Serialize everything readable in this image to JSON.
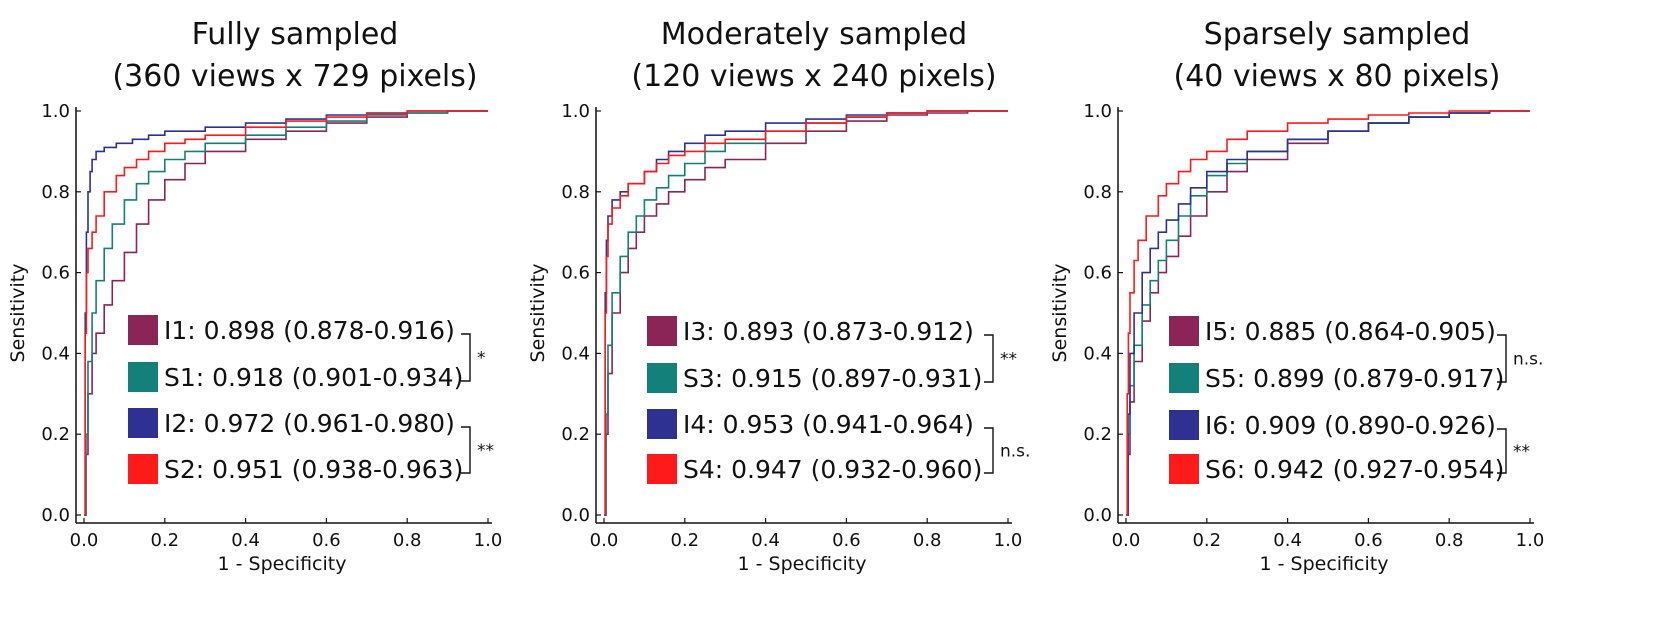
{
  "colors": {
    "I_odd": "#8b2457",
    "S_odd": "#138079",
    "I_even": "#2e3192",
    "S_even": "#ff1a1a"
  },
  "panels": [
    {
      "title_line1": "Fully sampled",
      "title_line2": "(360 views x 729 pixels)",
      "chart_data": {
        "type": "line",
        "subtype": "roc",
        "xlabel": "1 - Specificity",
        "ylabel": "Sensitivity",
        "xlim": [
          0,
          1
        ],
        "ylim": [
          0,
          1
        ],
        "xticks": [
          "0.0",
          "0.2",
          "0.4",
          "0.6",
          "0.8",
          "1.0"
        ],
        "yticks": [
          "0.0",
          "0.2",
          "0.4",
          "0.6",
          "0.8",
          "1.0"
        ],
        "series": [
          {
            "name": "I1",
            "legend": "I1: 0.898 (0.878-0.916)",
            "color": "#8b2457",
            "x": [
              0,
              0.005,
              0.01,
              0.02,
              0.03,
              0.05,
              0.07,
              0.1,
              0.13,
              0.16,
              0.2,
              0.25,
              0.3,
              0.4,
              0.5,
              0.6,
              0.7,
              0.8,
              0.9,
              1.0
            ],
            "y": [
              0,
              0.15,
              0.3,
              0.4,
              0.45,
              0.52,
              0.58,
              0.65,
              0.72,
              0.78,
              0.83,
              0.87,
              0.9,
              0.93,
              0.95,
              0.97,
              0.985,
              0.995,
              1.0,
              1.0
            ]
          },
          {
            "name": "S1",
            "legend": "S1: 0.918 (0.901-0.934)",
            "color": "#138079",
            "x": [
              0,
              0.005,
              0.01,
              0.02,
              0.03,
              0.05,
              0.07,
              0.1,
              0.13,
              0.16,
              0.2,
              0.25,
              0.3,
              0.4,
              0.5,
              0.6,
              0.7,
              0.8,
              0.9,
              1.0
            ],
            "y": [
              0,
              0.2,
              0.38,
              0.5,
              0.58,
              0.66,
              0.72,
              0.78,
              0.82,
              0.85,
              0.88,
              0.9,
              0.92,
              0.94,
              0.96,
              0.975,
              0.99,
              0.995,
              1.0,
              1.0
            ]
          },
          {
            "name": "I2",
            "legend": "I2: 0.972 (0.961-0.980)",
            "color": "#2e3192",
            "x": [
              0,
              0.003,
              0.006,
              0.01,
              0.015,
              0.02,
              0.03,
              0.05,
              0.08,
              0.12,
              0.16,
              0.2,
              0.3,
              0.4,
              0.5,
              0.6,
              0.7,
              0.8,
              0.9,
              1.0
            ],
            "y": [
              0,
              0.5,
              0.7,
              0.8,
              0.85,
              0.88,
              0.9,
              0.91,
              0.92,
              0.93,
              0.94,
              0.95,
              0.96,
              0.97,
              0.98,
              0.99,
              0.995,
              1.0,
              1.0,
              1.0
            ]
          },
          {
            "name": "S2",
            "legend": "S2: 0.951 (0.938-0.963)",
            "color": "#ff1a1a",
            "x": [
              0,
              0.003,
              0.006,
              0.01,
              0.02,
              0.03,
              0.05,
              0.08,
              0.1,
              0.13,
              0.16,
              0.2,
              0.25,
              0.3,
              0.4,
              0.5,
              0.6,
              0.7,
              0.8,
              0.9,
              1.0
            ],
            "y": [
              0,
              0.45,
              0.6,
              0.66,
              0.7,
              0.74,
              0.8,
              0.84,
              0.86,
              0.88,
              0.9,
              0.92,
              0.93,
              0.94,
              0.96,
              0.975,
              0.985,
              0.993,
              1.0,
              1.0,
              1.0
            ]
          }
        ]
      },
      "legend": [
        {
          "label": "I1: 0.898 (0.878-0.916)",
          "color": "#8b2457"
        },
        {
          "label": "S1: 0.918 (0.901-0.934)",
          "color": "#138079"
        },
        {
          "label": "I2: 0.972 (0.961-0.980)",
          "color": "#2e3192"
        },
        {
          "label": "S2: 0.951 (0.938-0.963)",
          "color": "#ff1a1a"
        }
      ],
      "significance": [
        {
          "pair": [
            "I1",
            "S1"
          ],
          "label": "*"
        },
        {
          "pair": [
            "I2",
            "S2"
          ],
          "label": "**"
        }
      ]
    },
    {
      "title_line1": "Moderately sampled",
      "title_line2": "(120 views x 240 pixels)",
      "chart_data": {
        "type": "line",
        "subtype": "roc",
        "xlabel": "1 - Specificity",
        "ylabel": "Sensitivity",
        "xlim": [
          0,
          1
        ],
        "ylim": [
          0,
          1
        ],
        "xticks": [
          "0.0",
          "0.2",
          "0.4",
          "0.6",
          "0.8",
          "1.0"
        ],
        "yticks": [
          "0.0",
          "0.2",
          "0.4",
          "0.6",
          "0.8",
          "1.0"
        ],
        "series": [
          {
            "name": "I3",
            "legend": "I3: 0.893 (0.873-0.912)",
            "color": "#8b2457",
            "x": [
              0,
              0.005,
              0.01,
              0.02,
              0.04,
              0.06,
              0.08,
              0.1,
              0.13,
              0.16,
              0.2,
              0.25,
              0.3,
              0.4,
              0.5,
              0.6,
              0.7,
              0.8,
              0.9,
              1.0
            ],
            "y": [
              0,
              0.2,
              0.35,
              0.5,
              0.6,
              0.66,
              0.7,
              0.74,
              0.77,
              0.8,
              0.83,
              0.86,
              0.88,
              0.92,
              0.95,
              0.975,
              0.99,
              0.995,
              1.0,
              1.0
            ]
          },
          {
            "name": "S3",
            "legend": "S3: 0.915 (0.897-0.931)",
            "color": "#138079",
            "x": [
              0,
              0.005,
              0.01,
              0.02,
              0.04,
              0.06,
              0.08,
              0.1,
              0.13,
              0.16,
              0.2,
              0.25,
              0.3,
              0.4,
              0.5,
              0.6,
              0.7,
              0.8,
              0.9,
              1.0
            ],
            "y": [
              0,
              0.25,
              0.42,
              0.55,
              0.64,
              0.7,
              0.74,
              0.78,
              0.81,
              0.84,
              0.87,
              0.9,
              0.92,
              0.95,
              0.97,
              0.985,
              0.995,
              1.0,
              1.0,
              1.0
            ]
          },
          {
            "name": "I4",
            "legend": "I4: 0.953 (0.941-0.964)",
            "color": "#2e3192",
            "x": [
              0,
              0.003,
              0.006,
              0.01,
              0.02,
              0.04,
              0.06,
              0.1,
              0.13,
              0.16,
              0.2,
              0.25,
              0.3,
              0.4,
              0.5,
              0.6,
              0.7,
              0.8,
              0.9,
              1.0
            ],
            "y": [
              0,
              0.55,
              0.68,
              0.74,
              0.78,
              0.8,
              0.82,
              0.85,
              0.88,
              0.9,
              0.92,
              0.94,
              0.95,
              0.97,
              0.98,
              0.99,
              0.995,
              1.0,
              1.0,
              1.0
            ]
          },
          {
            "name": "S4",
            "legend": "S4: 0.947 (0.932-0.960)",
            "color": "#ff1a1a",
            "x": [
              0,
              0.003,
              0.006,
              0.01,
              0.02,
              0.04,
              0.06,
              0.1,
              0.13,
              0.16,
              0.2,
              0.25,
              0.3,
              0.4,
              0.5,
              0.6,
              0.7,
              0.8,
              0.9,
              1.0
            ],
            "y": [
              0,
              0.5,
              0.64,
              0.72,
              0.76,
              0.79,
              0.82,
              0.85,
              0.87,
              0.89,
              0.9,
              0.92,
              0.93,
              0.95,
              0.97,
              0.985,
              0.995,
              1.0,
              1.0,
              1.0
            ]
          }
        ]
      },
      "legend": [
        {
          "label": "I3: 0.893 (0.873-0.912)",
          "color": "#8b2457"
        },
        {
          "label": "S3: 0.915 (0.897-0.931)",
          "color": "#138079"
        },
        {
          "label": "I4: 0.953 (0.941-0.964)",
          "color": "#2e3192"
        },
        {
          "label": "S4: 0.947 (0.932-0.960)",
          "color": "#ff1a1a"
        }
      ],
      "significance": [
        {
          "pair": [
            "I3",
            "S3"
          ],
          "label": "**"
        },
        {
          "pair": [
            "I4",
            "S4"
          ],
          "label": "n.s."
        }
      ]
    },
    {
      "title_line1": "Sparsely sampled",
      "title_line2": "(40 views x 80 pixels)",
      "chart_data": {
        "type": "line",
        "subtype": "roc",
        "xlabel": "1 - Specificity",
        "ylabel": "Sensitivity",
        "xlim": [
          0,
          1
        ],
        "ylim": [
          0,
          1
        ],
        "xticks": [
          "0.0",
          "0.2",
          "0.4",
          "0.6",
          "0.8",
          "1.0"
        ],
        "yticks": [
          "0.0",
          "0.2",
          "0.4",
          "0.6",
          "0.8",
          "1.0"
        ],
        "series": [
          {
            "name": "I5",
            "legend": "I5: 0.885 (0.864-0.905)",
            "color": "#8b2457",
            "x": [
              0,
              0.005,
              0.01,
              0.02,
              0.04,
              0.06,
              0.08,
              0.1,
              0.13,
              0.16,
              0.2,
              0.25,
              0.3,
              0.4,
              0.5,
              0.6,
              0.7,
              0.8,
              0.9,
              1.0
            ],
            "y": [
              0,
              0.15,
              0.28,
              0.38,
              0.48,
              0.55,
              0.6,
              0.64,
              0.69,
              0.74,
              0.8,
              0.85,
              0.88,
              0.92,
              0.95,
              0.97,
              0.985,
              0.995,
              1.0,
              1.0
            ]
          },
          {
            "name": "S5",
            "legend": "S5: 0.899 (0.879-0.917)",
            "color": "#138079",
            "x": [
              0,
              0.005,
              0.01,
              0.02,
              0.04,
              0.06,
              0.08,
              0.1,
              0.13,
              0.16,
              0.2,
              0.25,
              0.3,
              0.4,
              0.5,
              0.6,
              0.7,
              0.8,
              0.9,
              1.0
            ],
            "y": [
              0,
              0.2,
              0.32,
              0.42,
              0.52,
              0.58,
              0.63,
              0.68,
              0.74,
              0.79,
              0.84,
              0.87,
              0.9,
              0.93,
              0.95,
              0.97,
              0.985,
              0.995,
              1.0,
              1.0
            ]
          },
          {
            "name": "I6",
            "legend": "I6: 0.909 (0.890-0.926)",
            "color": "#2e3192",
            "x": [
              0,
              0.005,
              0.01,
              0.02,
              0.04,
              0.06,
              0.08,
              0.1,
              0.13,
              0.16,
              0.2,
              0.25,
              0.3,
              0.4,
              0.5,
              0.6,
              0.7,
              0.8,
              0.9,
              1.0
            ],
            "y": [
              0,
              0.25,
              0.4,
              0.5,
              0.6,
              0.66,
              0.7,
              0.73,
              0.77,
              0.81,
              0.85,
              0.88,
              0.9,
              0.93,
              0.95,
              0.97,
              0.985,
              0.995,
              1.0,
              1.0
            ]
          },
          {
            "name": "S6",
            "legend": "S6: 0.942 (0.927-0.954)",
            "color": "#ff1a1a",
            "x": [
              0,
              0.003,
              0.006,
              0.01,
              0.02,
              0.03,
              0.05,
              0.08,
              0.1,
              0.13,
              0.16,
              0.2,
              0.25,
              0.3,
              0.4,
              0.5,
              0.6,
              0.7,
              0.8,
              0.9,
              1.0
            ],
            "y": [
              0,
              0.3,
              0.45,
              0.55,
              0.63,
              0.68,
              0.74,
              0.79,
              0.82,
              0.85,
              0.88,
              0.9,
              0.93,
              0.95,
              0.97,
              0.98,
              0.99,
              0.995,
              1.0,
              1.0,
              1.0
            ]
          }
        ]
      },
      "legend": [
        {
          "label": "I5: 0.885 (0.864-0.905)",
          "color": "#8b2457"
        },
        {
          "label": "S5: 0.899 (0.879-0.917)",
          "color": "#138079"
        },
        {
          "label": "I6: 0.909 (0.890-0.926)",
          "color": "#2e3192"
        },
        {
          "label": "S6: 0.942 (0.927-0.954)",
          "color": "#ff1a1a"
        }
      ],
      "significance": [
        {
          "pair": [
            "I5",
            "S5"
          ],
          "label": "n.s."
        },
        {
          "pair": [
            "I6",
            "S6"
          ],
          "label": "**"
        }
      ]
    }
  ]
}
